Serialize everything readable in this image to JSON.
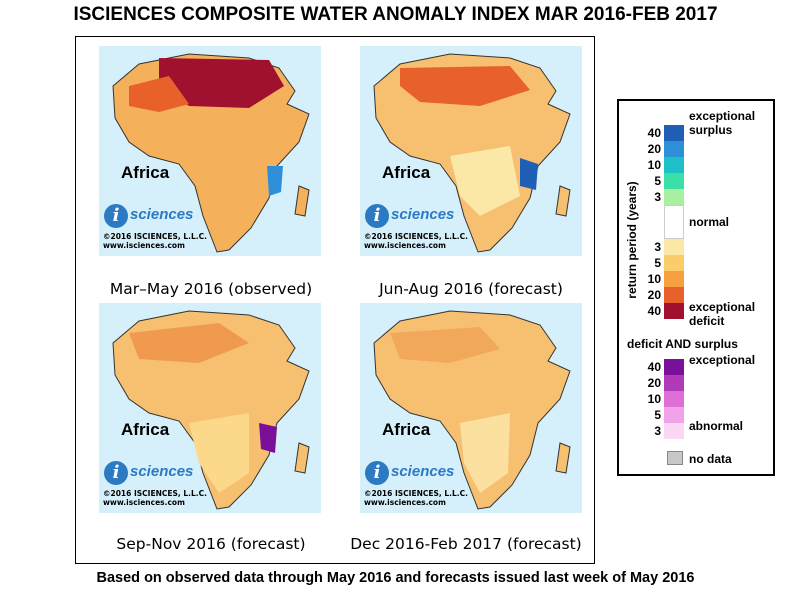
{
  "title": "ISCIENCES COMPOSITE WATER ANOMALY INDEX MAR 2016-FEB 2017",
  "footer": "Based on observed data through May 2016 and forecasts issued last week of May 2016",
  "panels": [
    {
      "region": "Africa",
      "logo_letter": "i",
      "logo_text": "sciences",
      "copyright": "©2016 ISCIENCES, L.L.C.",
      "website": "www.isciences.com",
      "caption": "Mar–May 2016 (observed)"
    },
    {
      "region": "Africa",
      "logo_letter": "i",
      "logo_text": "sciences",
      "copyright": "©2016 ISCIENCES, L.L.C.",
      "website": "www.isciences.com",
      "caption": "Jun-Aug 2016 (forecast)"
    },
    {
      "region": "Africa",
      "logo_letter": "i",
      "logo_text": "sciences",
      "copyright": "©2016 ISCIENCES, L.L.C.",
      "website": "www.isciences.com",
      "caption": "Sep-Nov 2016 (forecast)"
    },
    {
      "region": "Africa",
      "logo_letter": "i",
      "logo_text": "sciences",
      "copyright": "©2016 ISCIENCES, L.L.C.",
      "website": "www.isciences.com",
      "caption": "Dec 2016-Feb 2017 (forecast)"
    }
  ],
  "legend": {
    "axis_label": "return period (years)",
    "exceptional_surplus": "exceptional surplus",
    "normal": "normal",
    "exceptional_deficit": "exceptional deficit",
    "deficit_and_surplus": "deficit AND surplus",
    "exceptional": "exceptional",
    "abnormal": "abnormal",
    "no_data": "no data",
    "surplus_ticks": [
      "40",
      "20",
      "10",
      "5",
      "3"
    ],
    "deficit_ticks": [
      "3",
      "5",
      "10",
      "20",
      "40"
    ],
    "both_ticks": [
      "40",
      "20",
      "10",
      "5",
      "3"
    ],
    "colors": {
      "surplus": [
        "#1f5fb6",
        "#2d8fd8",
        "#1ec0c8",
        "#3be0a8",
        "#a8f0a0"
      ],
      "deficit": [
        "#fbe8a6",
        "#fbcc6a",
        "#f7a040",
        "#e8602a",
        "#a0102f"
      ],
      "both": [
        "#7a0f9a",
        "#b03ab8",
        "#de6fd6",
        "#f0a3e8",
        "#fbd6f5"
      ],
      "no_data": "#c8c8c8",
      "water": "#d5f0fa"
    }
  }
}
